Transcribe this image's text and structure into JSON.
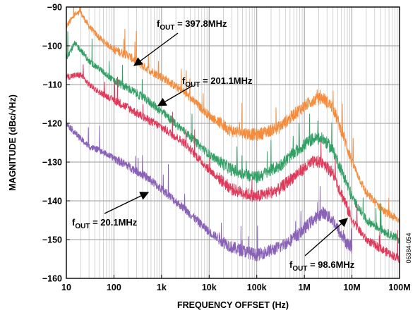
{
  "chart_data": {
    "type": "line",
    "xlabel": "FREQUENCY OFFSET (Hz)",
    "ylabel": "MAGNITUDE (dBc/√Hz)",
    "x_scale": "log",
    "xlim": [
      10,
      100000000
    ],
    "ylim": [
      -160,
      -90
    ],
    "x_ticks": [
      {
        "value": 10,
        "label": "10"
      },
      {
        "value": 100,
        "label": "100"
      },
      {
        "value": 1000,
        "label": "1k"
      },
      {
        "value": 10000,
        "label": "10k"
      },
      {
        "value": 100000,
        "label": "100k"
      },
      {
        "value": 1000000,
        "label": "1M"
      },
      {
        "value": 10000000,
        "label": "10M"
      },
      {
        "value": 100000000,
        "label": "100M"
      }
    ],
    "y_ticks": [
      -90,
      -100,
      -110,
      -120,
      -130,
      -140,
      -150,
      -160
    ],
    "grid": true,
    "figure_id": "06384-054",
    "series": [
      {
        "color": "#f58c3c",
        "label_main": "f",
        "label_sub": "OUT",
        "label_rest": " = 397.8MHz",
        "points": [
          [
            10,
            -95
          ],
          [
            15,
            -92
          ],
          [
            20,
            -91.5
          ],
          [
            30,
            -95
          ],
          [
            50,
            -98
          ],
          [
            100,
            -101
          ],
          [
            200,
            -102.5
          ],
          [
            500,
            -106
          ],
          [
            1000,
            -108
          ],
          [
            3000,
            -112
          ],
          [
            10000,
            -118
          ],
          [
            30000,
            -122
          ],
          [
            100000,
            -123
          ],
          [
            300000,
            -121
          ],
          [
            700000,
            -117
          ],
          [
            1500000,
            -114
          ],
          [
            2500000,
            -113.5
          ],
          [
            4000000,
            -116
          ],
          [
            7000000,
            -124
          ],
          [
            10000000,
            -130
          ],
          [
            20000000,
            -138
          ],
          [
            50000000,
            -143
          ],
          [
            100000000,
            -145
          ]
        ]
      },
      {
        "color": "#33a166",
        "label_main": "f",
        "label_sub": "OUT",
        "label_rest": " = 201.1MHz",
        "points": [
          [
            10,
            -103
          ],
          [
            15,
            -99.5
          ],
          [
            20,
            -101
          ],
          [
            30,
            -104
          ],
          [
            50,
            -106
          ],
          [
            100,
            -109
          ],
          [
            200,
            -111
          ],
          [
            500,
            -114
          ],
          [
            1000,
            -117
          ],
          [
            3000,
            -122
          ],
          [
            10000,
            -128
          ],
          [
            30000,
            -132
          ],
          [
            100000,
            -134
          ],
          [
            300000,
            -131
          ],
          [
            700000,
            -127
          ],
          [
            1500000,
            -124
          ],
          [
            2500000,
            -124
          ],
          [
            4000000,
            -127
          ],
          [
            7000000,
            -134
          ],
          [
            10000000,
            -139
          ],
          [
            20000000,
            -145
          ],
          [
            50000000,
            -148
          ],
          [
            100000000,
            -150
          ]
        ]
      },
      {
        "color": "#e03a5a",
        "label_main": "f",
        "label_sub": "OUT",
        "label_rest": " = 98.6MHz",
        "points": [
          [
            10,
            -108
          ],
          [
            20,
            -107.5
          ],
          [
            30,
            -110
          ],
          [
            50,
            -112
          ],
          [
            100,
            -114
          ],
          [
            200,
            -116
          ],
          [
            500,
            -119
          ],
          [
            1000,
            -121
          ],
          [
            3000,
            -125
          ],
          [
            10000,
            -132
          ],
          [
            30000,
            -137
          ],
          [
            100000,
            -139
          ],
          [
            300000,
            -137
          ],
          [
            700000,
            -133
          ],
          [
            1500000,
            -130
          ],
          [
            2500000,
            -130
          ],
          [
            4000000,
            -133
          ],
          [
            7000000,
            -140
          ],
          [
            10000000,
            -145
          ],
          [
            20000000,
            -150
          ],
          [
            50000000,
            -153
          ],
          [
            100000000,
            -155
          ]
        ]
      },
      {
        "color": "#8a63b8",
        "label_main": "f",
        "label_sub": "OUT",
        "label_rest": " = 20.1MHz",
        "points": [
          [
            10,
            -120
          ],
          [
            20,
            -124
          ],
          [
            30,
            -126
          ],
          [
            50,
            -127
          ],
          [
            100,
            -129
          ],
          [
            200,
            -131
          ],
          [
            500,
            -134
          ],
          [
            1000,
            -137
          ],
          [
            3000,
            -142
          ],
          [
            10000,
            -148
          ],
          [
            30000,
            -152
          ],
          [
            100000,
            -154
          ],
          [
            300000,
            -152
          ],
          [
            700000,
            -149
          ],
          [
            1500000,
            -145
          ],
          [
            2500000,
            -143
          ],
          [
            4000000,
            -145
          ],
          [
            6000000,
            -149
          ],
          [
            8000000,
            -151
          ],
          [
            10000000,
            -152
          ]
        ]
      }
    ]
  }
}
